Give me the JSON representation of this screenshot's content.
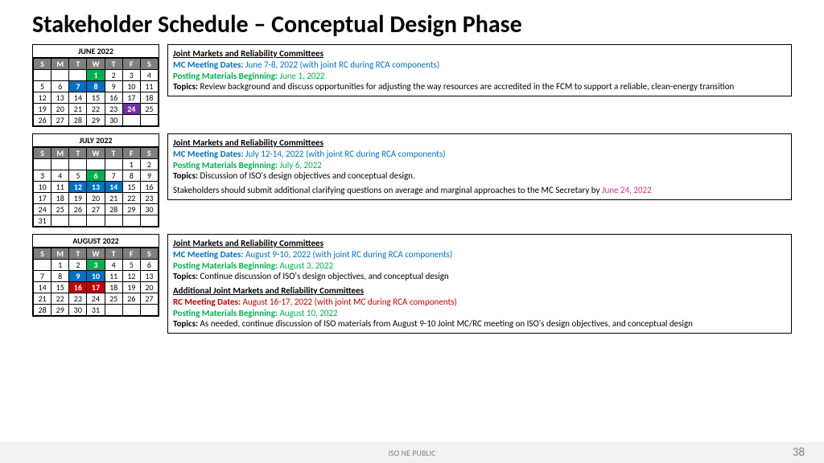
{
  "title": "Stakeholder Schedule – Conceptual Design Phase",
  "footer": {
    "label": "ISO NE PUBLIC",
    "page": "38"
  },
  "colors": {
    "green": "#00b050",
    "blue": "#0070c0",
    "purple": "#7030a0",
    "red": "#c00000",
    "pink": "#d63384"
  },
  "months": [
    {
      "name": "JUNE 2022",
      "headers": [
        "S",
        "M",
        "T",
        "W",
        "T",
        "F",
        "S"
      ],
      "weeks": [
        [
          null,
          null,
          null,
          {
            "d": 1,
            "c": "green"
          },
          {
            "d": 2
          },
          {
            "d": 3
          },
          {
            "d": 4
          }
        ],
        [
          {
            "d": 5
          },
          {
            "d": 6
          },
          {
            "d": 7,
            "c": "blue"
          },
          {
            "d": 8,
            "c": "blue"
          },
          {
            "d": 9
          },
          {
            "d": 10
          },
          {
            "d": 11
          }
        ],
        [
          {
            "d": 12
          },
          {
            "d": 13
          },
          {
            "d": 14
          },
          {
            "d": 15
          },
          {
            "d": 16
          },
          {
            "d": 17
          },
          {
            "d": 18
          }
        ],
        [
          {
            "d": 19
          },
          {
            "d": 20
          },
          {
            "d": 21
          },
          {
            "d": 22
          },
          {
            "d": 23
          },
          {
            "d": 24,
            "c": "purple"
          },
          {
            "d": 25
          }
        ],
        [
          {
            "d": 26
          },
          {
            "d": 27
          },
          {
            "d": 28
          },
          {
            "d": 29
          },
          {
            "d": 30
          },
          null,
          null
        ]
      ],
      "info": {
        "title1": "Joint Markets and Reliability Committees",
        "mc_label": "MC Meeting Dates:",
        "mc_value": "June 7-8, 2022 (with joint RC during RCA components)",
        "pm_label": "Posting Materials Beginning:",
        "pm_value": "June 1, 2022",
        "topics_label": "Topics:",
        "topics": "Review background and discuss opportunities for adjusting the way resources are accredited in the FCM to support a reliable, clean-energy transition"
      }
    },
    {
      "name": "JULY 2022",
      "headers": [
        "S",
        "M",
        "T",
        "W",
        "T",
        "F",
        "S"
      ],
      "weeks": [
        [
          null,
          null,
          null,
          null,
          null,
          {
            "d": 1
          },
          {
            "d": 2
          }
        ],
        [
          {
            "d": 3
          },
          {
            "d": 4
          },
          {
            "d": 5
          },
          {
            "d": 6,
            "c": "green"
          },
          {
            "d": 7
          },
          {
            "d": 8
          },
          {
            "d": 9
          }
        ],
        [
          {
            "d": 10
          },
          {
            "d": 11
          },
          {
            "d": 12,
            "c": "blue"
          },
          {
            "d": 13,
            "c": "blue"
          },
          {
            "d": 14,
            "c": "blue"
          },
          {
            "d": 15
          },
          {
            "d": 16
          }
        ],
        [
          {
            "d": 17
          },
          {
            "d": 18
          },
          {
            "d": 19
          },
          {
            "d": 20
          },
          {
            "d": 21
          },
          {
            "d": 22
          },
          {
            "d": 23
          }
        ],
        [
          {
            "d": 24
          },
          {
            "d": 25
          },
          {
            "d": 26
          },
          {
            "d": 27
          },
          {
            "d": 28
          },
          {
            "d": 29
          },
          {
            "d": 30
          }
        ],
        [
          {
            "d": 31
          },
          null,
          null,
          null,
          null,
          null,
          null
        ]
      ],
      "info": {
        "title1": "Joint Markets and Reliability Committees",
        "mc_label": "MC Meeting Dates:",
        "mc_value": "July 12-14, 2022 (with joint RC during RCA components)",
        "pm_label": "Posting Materials Beginning:",
        "pm_value": "July 6, 2022",
        "topics_label": "Topics:",
        "topics": "Discussion of ISO's design objectives and conceptual design.",
        "extra_pre": "Stakeholders should submit additional clarifying questions on average and marginal approaches to the MC Secretary by ",
        "extra_date": "June 24, 2022"
      }
    },
    {
      "name": "AUGUST 2022",
      "headers": [
        "S",
        "M",
        "T",
        "W",
        "T",
        "F",
        "S"
      ],
      "weeks": [
        [
          null,
          {
            "d": 1
          },
          {
            "d": 2
          },
          {
            "d": 3,
            "c": "green"
          },
          {
            "d": 4
          },
          {
            "d": 5
          },
          {
            "d": 6
          }
        ],
        [
          {
            "d": 7
          },
          {
            "d": 8
          },
          {
            "d": 9,
            "c": "blue"
          },
          {
            "d": 10,
            "c": "blue"
          },
          {
            "d": 11
          },
          {
            "d": 12
          },
          {
            "d": 13
          }
        ],
        [
          {
            "d": 14
          },
          {
            "d": 15
          },
          {
            "d": 16,
            "c": "red"
          },
          {
            "d": 17,
            "c": "red"
          },
          {
            "d": 18
          },
          {
            "d": 19
          },
          {
            "d": 20
          }
        ],
        [
          {
            "d": 21
          },
          {
            "d": 22
          },
          {
            "d": 23
          },
          {
            "d": 24
          },
          {
            "d": 25
          },
          {
            "d": 26
          },
          {
            "d": 27
          }
        ],
        [
          {
            "d": 28
          },
          {
            "d": 29
          },
          {
            "d": 30
          },
          {
            "d": 31
          },
          null,
          null,
          null
        ]
      ],
      "info": {
        "title1": "Joint Markets and Reliability Committees",
        "mc_label": "MC Meeting Dates:",
        "mc_value": "August 9-10, 2022 (with joint RC during RCA components)",
        "pm_label": "Posting Materials Beginning:",
        "pm_value": "August 3, 2022",
        "topics_label": "Topics:",
        "topics": "Continue discussion of ISO's design objectives, and conceptual design",
        "title2": "Additional Joint Markets and Reliability Committees",
        "rc_label": "RC Meeting Dates:",
        "rc_value": "August 16-17, 2022 (with joint MC during RCA components)",
        "pm2_label": "Posting Materials Beginning:",
        "pm2_value": "August 10, 2022",
        "topics2_label": "Topics:",
        "topics2": "As needed, continue discussion of ISO materials from August 9-10 Joint MC/RC meeting on ISO's design objectives, and conceptual design"
      }
    }
  ]
}
